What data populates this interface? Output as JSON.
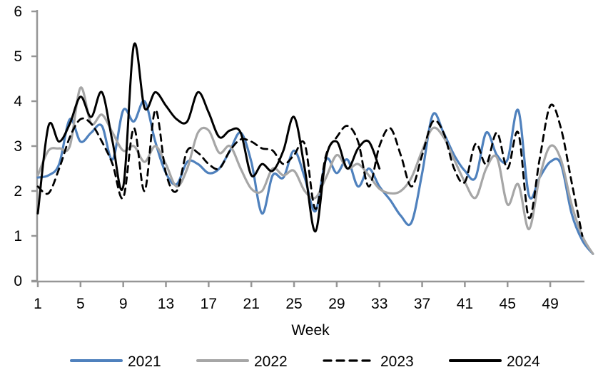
{
  "chart_data": {
    "type": "line",
    "title": "",
    "xlabel": "Week",
    "ylabel": "",
    "ylim": [
      0,
      6
    ],
    "y_ticks": [
      0,
      1,
      2,
      3,
      4,
      5,
      6
    ],
    "x_ticks": [
      1,
      5,
      9,
      13,
      17,
      21,
      25,
      29,
      33,
      37,
      41,
      45,
      49
    ],
    "x_range": [
      1,
      53
    ],
    "grid": false,
    "legend_position": "bottom",
    "axis_color": "#969696",
    "text_color": "#000000",
    "smoothed": true,
    "series": [
      {
        "name": "2021",
        "color": "#4F81BD",
        "dash": "solid",
        "width": 3.2,
        "x_start": 1,
        "values": [
          2.3,
          2.35,
          2.6,
          3.6,
          3.1,
          3.3,
          3.45,
          2.7,
          3.8,
          3.55,
          4.0,
          3.1,
          2.4,
          2.15,
          2.65,
          2.6,
          2.4,
          2.5,
          2.9,
          3.3,
          2.65,
          1.5,
          2.35,
          2.3,
          2.9,
          2.3,
          1.55,
          2.7,
          2.4,
          2.7,
          2.1,
          2.5,
          2.1,
          1.8,
          1.45,
          1.3,
          2.4,
          3.7,
          3.3,
          2.8,
          2.45,
          2.3,
          3.3,
          2.8,
          2.7,
          3.8,
          1.9,
          2.3,
          2.65,
          2.6,
          1.5,
          0.9,
          0.6
        ]
      },
      {
        "name": "2022",
        "color": "#A6A6A6",
        "dash": "solid",
        "width": 3.2,
        "x_start": 1,
        "values": [
          2.35,
          2.9,
          2.95,
          3.0,
          4.3,
          3.5,
          3.7,
          3.3,
          2.9,
          3.0,
          2.65,
          3.0,
          2.6,
          2.1,
          2.5,
          3.3,
          3.35,
          2.85,
          3.0,
          2.5,
          2.05,
          2.0,
          2.5,
          2.35,
          2.45,
          2.0,
          1.85,
          2.3,
          2.8,
          2.5,
          2.6,
          2.35,
          2.05,
          1.95,
          2.0,
          2.3,
          2.9,
          3.4,
          3.2,
          2.7,
          2.2,
          1.85,
          2.5,
          2.75,
          1.7,
          2.15,
          1.15,
          2.3,
          3.0,
          2.7,
          1.7,
          1.0,
          0.6
        ]
      },
      {
        "name": "2023",
        "color": "#000000",
        "dash": "dashed",
        "width": 2.8,
        "x_start": 1,
        "values": [
          2.1,
          1.95,
          2.5,
          3.2,
          3.6,
          3.5,
          3.1,
          2.6,
          1.85,
          3.4,
          2.0,
          3.8,
          2.4,
          2.0,
          2.9,
          2.85,
          2.6,
          2.5,
          2.9,
          3.15,
          3.1,
          2.95,
          2.9,
          2.6,
          2.8,
          3.05,
          1.6,
          2.8,
          3.2,
          3.45,
          3.1,
          2.1,
          3.0,
          3.4,
          2.8,
          2.1,
          2.8,
          3.55,
          3.3,
          2.5,
          2.2,
          3.05,
          2.6,
          3.3,
          2.5,
          3.3,
          1.4,
          2.7,
          3.9,
          3.4,
          2.2,
          1.0
        ]
      },
      {
        "name": "2024",
        "color": "#000000",
        "dash": "solid",
        "width": 3.0,
        "x_start": 1,
        "values": [
          1.5,
          3.45,
          3.1,
          3.5,
          4.1,
          3.65,
          4.2,
          3.1,
          2.1,
          5.25,
          3.85,
          4.2,
          3.9,
          3.6,
          3.55,
          4.2,
          3.75,
          3.2,
          3.35,
          3.3,
          2.35,
          2.6,
          2.45,
          2.9,
          3.65,
          2.5,
          1.1,
          2.75,
          3.1,
          2.5,
          2.95,
          3.1,
          2.5
        ]
      }
    ],
    "legend": [
      "2021",
      "2022",
      "2023",
      "2024"
    ]
  }
}
